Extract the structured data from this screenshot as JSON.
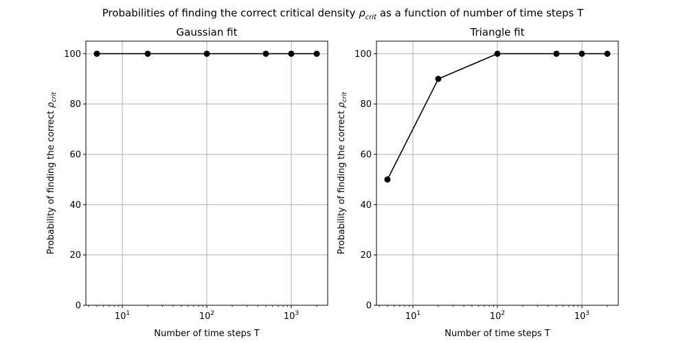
{
  "figure": {
    "suptitle_main": "Probabilities of finding the correct critical density ",
    "suptitle_symbol": "ρ",
    "suptitle_sub": "crit",
    "suptitle_tail": " as a function of number of time steps T"
  },
  "chart_data": [
    {
      "type": "line",
      "title": "Gaussian fit",
      "xlabel": "Number of time steps T",
      "ylabel_main": "Probability of finding the correct ",
      "ylabel_symbol": "ρ",
      "ylabel_sub": "crit",
      "xscale": "log",
      "x": [
        5,
        20,
        100,
        500,
        1000,
        2000
      ],
      "y": [
        100,
        100,
        100,
        100,
        100,
        100
      ],
      "xticks": [
        10,
        100,
        1000
      ],
      "xtick_labels": [
        {
          "base": "10",
          "exp": "1"
        },
        {
          "base": "10",
          "exp": "2"
        },
        {
          "base": "10",
          "exp": "3"
        }
      ],
      "yticks": [
        0,
        20,
        40,
        60,
        80,
        100
      ],
      "ylim": [
        0,
        105
      ],
      "grid": true,
      "line_color": "#000000",
      "marker": "circle"
    },
    {
      "type": "line",
      "title": "Triangle fit",
      "xlabel": "Number of time steps T",
      "ylabel_main": "Probability of finding the correct ",
      "ylabel_symbol": "ρ",
      "ylabel_sub": "crit",
      "xscale": "log",
      "x": [
        5,
        20,
        100,
        500,
        1000,
        2000
      ],
      "y": [
        50,
        90,
        100,
        100,
        100,
        100
      ],
      "xticks": [
        10,
        100,
        1000
      ],
      "xtick_labels": [
        {
          "base": "10",
          "exp": "1"
        },
        {
          "base": "10",
          "exp": "2"
        },
        {
          "base": "10",
          "exp": "3"
        }
      ],
      "yticks": [
        0,
        20,
        40,
        60,
        80,
        100
      ],
      "ylim": [
        0,
        105
      ],
      "grid": true,
      "line_color": "#000000",
      "marker": "circle"
    }
  ],
  "colors": {
    "grid": "#b0b0b0",
    "axes": "#000000",
    "line": "#000000"
  }
}
